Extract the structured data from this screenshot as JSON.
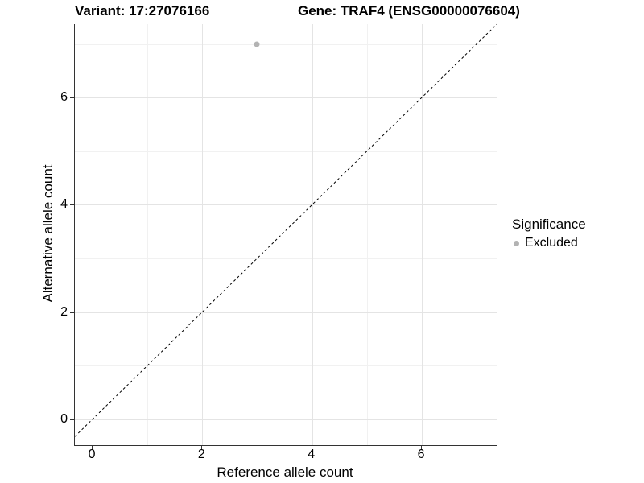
{
  "chart_data": {
    "type": "scatter",
    "title_variant": "Variant: 17:27076166",
    "title_gene": "Gene: TRAF4 (ENSG00000076604)",
    "xlabel": "Reference allele count",
    "ylabel": "Alternative allele count",
    "xlim": [
      -0.323,
      7.364
    ],
    "ylim": [
      -0.485,
      7.368
    ],
    "x_ticks": [
      0,
      2,
      4,
      6
    ],
    "y_ticks": [
      0,
      2,
      4,
      6
    ],
    "grid_major": [
      0,
      2,
      4,
      6
    ],
    "grid_minor": [
      1,
      3,
      5,
      7
    ],
    "identity_line": {
      "slope": 1,
      "intercept": 0,
      "style": "dashed"
    },
    "points": [
      {
        "x": 3,
        "y": 7,
        "significance": "Excluded"
      }
    ],
    "legend": {
      "title": "Significance",
      "position": "right",
      "items": [
        {
          "label": "Excluded",
          "color": "#b3b3b3"
        }
      ]
    }
  },
  "colors": {
    "point": "#b3b3b3",
    "grid_major": "#e4e4e4",
    "grid_minor": "#f1f1f1",
    "axis_line": "#333333",
    "identity_line": "#000000",
    "text": "#000000"
  }
}
